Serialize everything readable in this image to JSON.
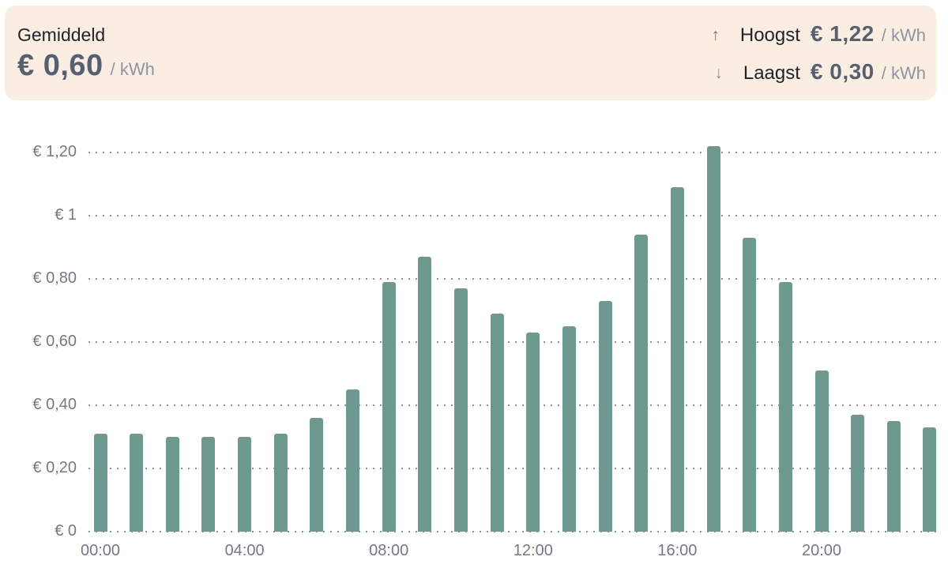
{
  "summary": {
    "average_label": "Gemiddeld",
    "average_value": "€ 0,60",
    "average_unit": "/ kWh",
    "up_arrow": "↑",
    "highest_label": "Hoogst",
    "highest_value": "€ 1,22",
    "highest_unit": "/ kWh",
    "down_arrow": "↓",
    "lowest_label": "Laagst",
    "lowest_value": "€ 0,30",
    "lowest_unit": "/ kWh"
  },
  "colors": {
    "panel_bg": "#faeee3",
    "bar": "#6e998f",
    "value_text": "#556070",
    "dark_text": "#21242a",
    "muted_text": "#8e95a2",
    "axis_text": "#727a85",
    "grid_dot": "#8b929b",
    "arrow_up": "#a06a2c",
    "arrow_down": "#74a18b"
  },
  "chart_data": {
    "type": "bar",
    "title": "",
    "unit": "€/kWh",
    "categories": [
      "00:00",
      "01:00",
      "02:00",
      "03:00",
      "04:00",
      "05:00",
      "06:00",
      "07:00",
      "08:00",
      "09:00",
      "10:00",
      "11:00",
      "12:00",
      "13:00",
      "14:00",
      "15:00",
      "16:00",
      "17:00",
      "18:00",
      "19:00",
      "20:00",
      "21:00",
      "22:00",
      "23:00"
    ],
    "values": [
      0.31,
      0.31,
      0.3,
      0.3,
      0.3,
      0.31,
      0.36,
      0.45,
      0.79,
      0.87,
      0.77,
      0.69,
      0.63,
      0.65,
      0.73,
      0.94,
      1.09,
      1.22,
      0.93,
      0.79,
      0.51,
      0.37,
      0.35,
      0.33
    ],
    "ylim": [
      0,
      1.28
    ],
    "yticks": [
      {
        "value": 0,
        "label": "€ 0"
      },
      {
        "value": 0.2,
        "label": "€ 0,20"
      },
      {
        "value": 0.4,
        "label": "€ 0,40"
      },
      {
        "value": 0.6,
        "label": "€ 0,60"
      },
      {
        "value": 0.8,
        "label": "€ 0,80"
      },
      {
        "value": 1.0,
        "label": "€ 1"
      },
      {
        "value": 1.2,
        "label": "€ 1,20"
      }
    ],
    "xticks": [
      {
        "index": 0,
        "label": "00:00"
      },
      {
        "index": 4,
        "label": "04:00"
      },
      {
        "index": 8,
        "label": "08:00"
      },
      {
        "index": 12,
        "label": "12:00"
      },
      {
        "index": 16,
        "label": "16:00"
      },
      {
        "index": 20,
        "label": "20:00"
      }
    ],
    "grid": "dotted-horizontal",
    "legend": "none"
  }
}
